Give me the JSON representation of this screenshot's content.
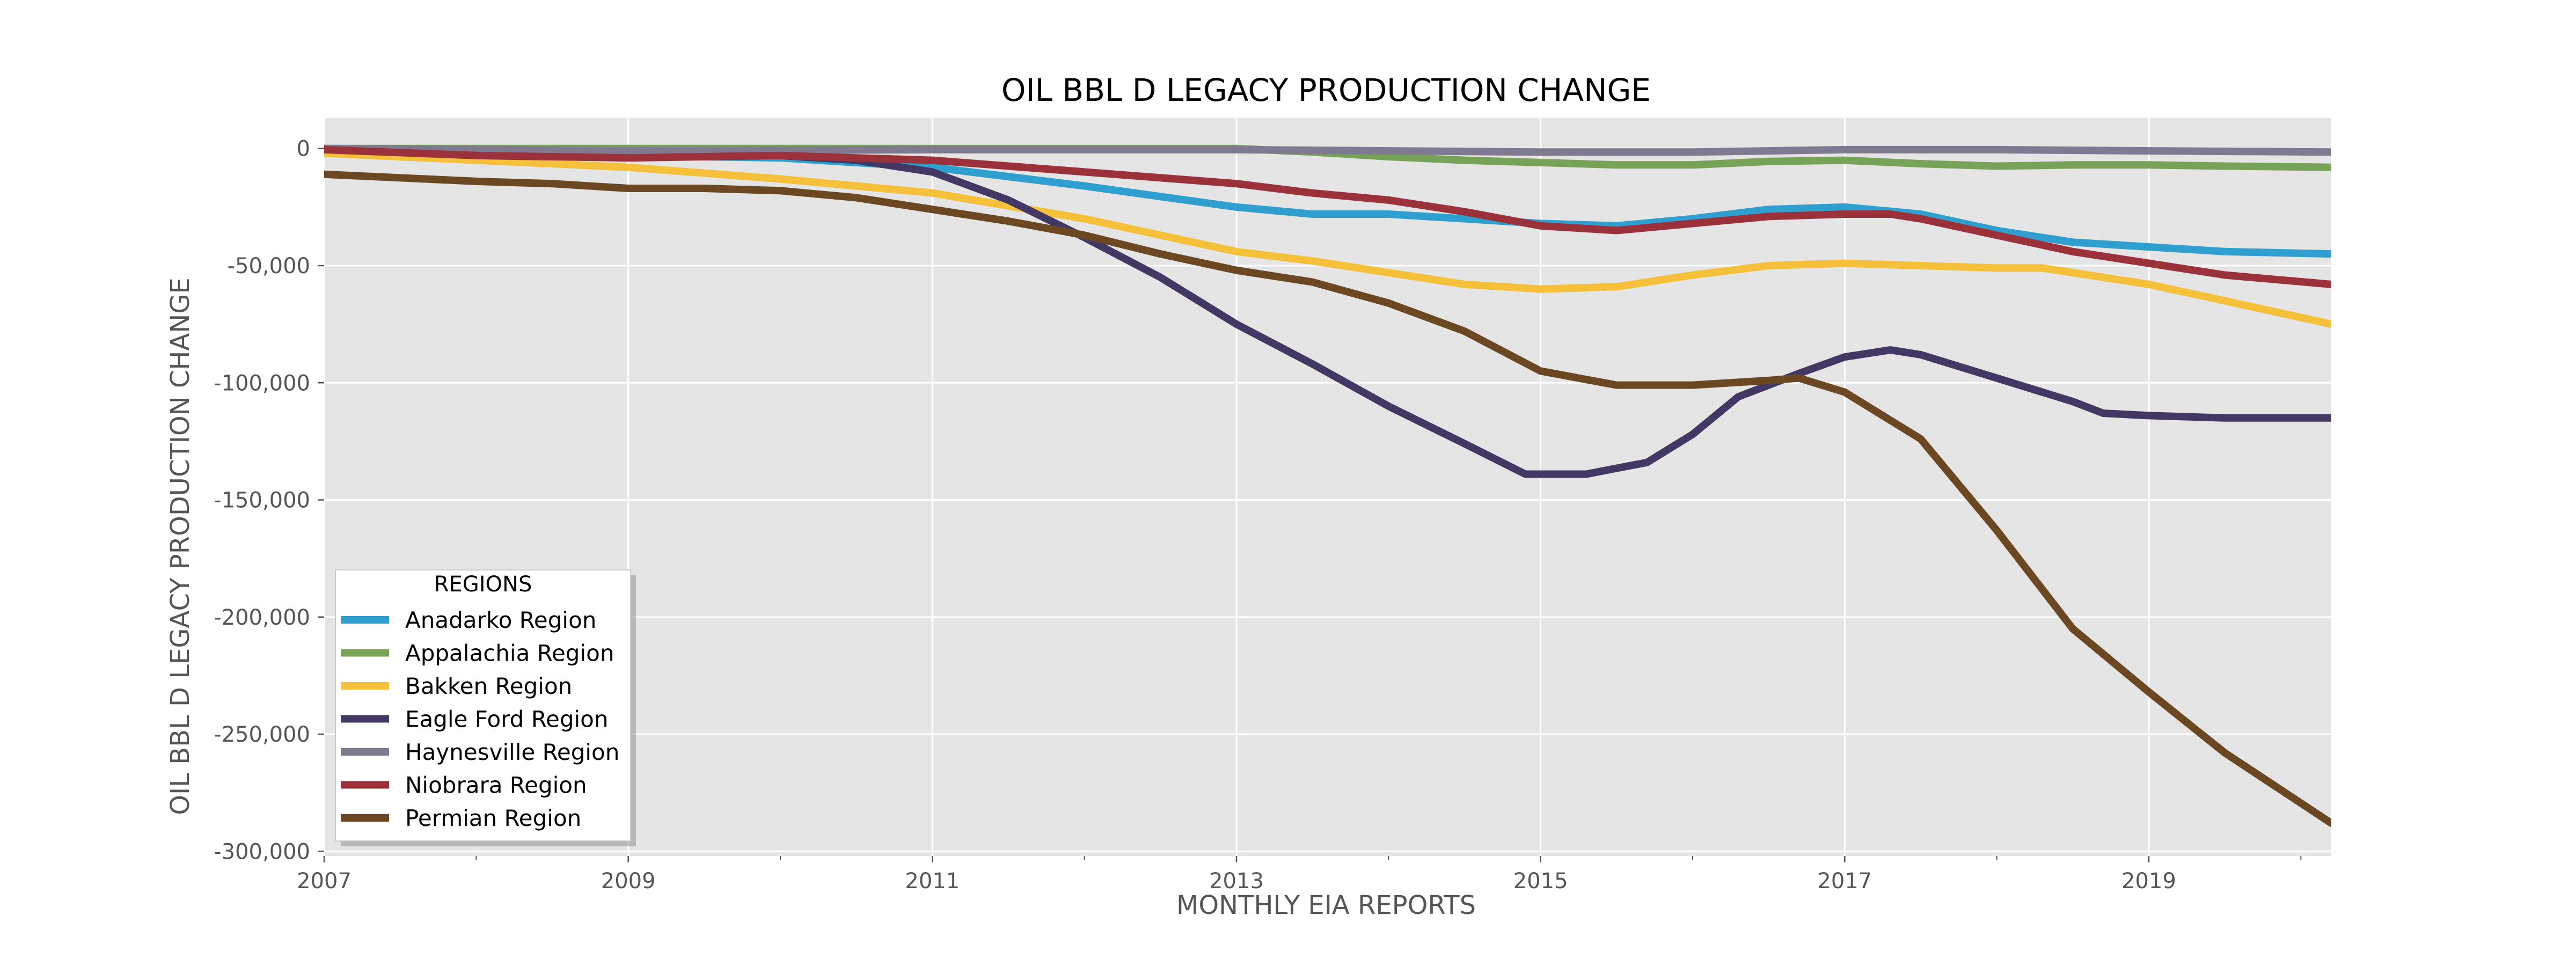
{
  "chart_data": {
    "type": "line",
    "title": "OIL BBL D LEGACY PRODUCTION CHANGE",
    "xlabel": "MONTHLY EIA REPORTS",
    "ylabel": "OIL BBL D LEGACY PRODUCTION CHANGE",
    "xlim": [
      2007,
      2020.2
    ],
    "ylim": [
      -302000,
      13000
    ],
    "x_major_ticks": [
      2007,
      2009,
      2011,
      2013,
      2015,
      2017,
      2019
    ],
    "x_major_tick_labels": [
      "2007",
      "2009",
      "2011",
      "2013",
      "2015",
      "2017",
      "2019"
    ],
    "x_minor_ticks": [
      2008,
      2010,
      2012,
      2014,
      2016,
      2018,
      2020
    ],
    "y_ticks": [
      0,
      -50000,
      -100000,
      -150000,
      -200000,
      -250000,
      -300000
    ],
    "y_tick_labels": [
      "0",
      "-50,000",
      "-100,000",
      "-150,000",
      "-200,000",
      "-250,000",
      "-300,000"
    ],
    "grid": true,
    "background": "#e5e5e5",
    "legend": {
      "title": "REGIONS",
      "placement": "lower-left"
    },
    "series": [
      {
        "name": "Anadarko Region",
        "color": "#2e9fce",
        "x": [
          2007,
          2008,
          2009,
          2010,
          2011,
          2012,
          2013,
          2013.5,
          2014,
          2014.5,
          2015,
          2015.5,
          2016,
          2016.5,
          2017,
          2017.5,
          2018,
          2018.5,
          2019,
          2019.5,
          2020.2
        ],
        "y": [
          -1000,
          -2000,
          -3000,
          -4000,
          -8000,
          -16000,
          -25000,
          -28000,
          -28000,
          -30000,
          -32000,
          -33000,
          -30000,
          -26000,
          -25000,
          -28000,
          -35000,
          -40000,
          -42000,
          -44000,
          -45000
        ]
      },
      {
        "name": "Appalachia Region",
        "color": "#78a258",
        "x": [
          2007,
          2008,
          2009,
          2010,
          2011,
          2012,
          2013,
          2013.5,
          2014,
          2014.5,
          2015,
          2015.5,
          2016,
          2016.5,
          2017,
          2017.5,
          2018,
          2018.5,
          2019,
          2019.5,
          2020.2
        ],
        "y": [
          0,
          0,
          0,
          0,
          0,
          0,
          0,
          -1500,
          -3500,
          -5000,
          -6000,
          -7000,
          -7000,
          -5500,
          -5000,
          -6500,
          -7500,
          -7000,
          -7000,
          -7500,
          -8000
        ]
      },
      {
        "name": "Bakken Region",
        "color": "#f5c13a",
        "x": [
          2007,
          2008,
          2009,
          2010,
          2011,
          2012,
          2013,
          2013.5,
          2014,
          2014.5,
          2015,
          2015.5,
          2016,
          2016.5,
          2017,
          2017.5,
          2018,
          2018.3,
          2018.5,
          2019,
          2019.5,
          2020.2
        ],
        "y": [
          -2000,
          -5000,
          -8000,
          -13000,
          -19000,
          -30000,
          -44000,
          -48000,
          -53000,
          -58000,
          -60000,
          -59000,
          -54000,
          -50000,
          -49000,
          -50000,
          -51000,
          -51000,
          -53000,
          -58000,
          -65000,
          -75000
        ]
      },
      {
        "name": "Eagle Ford Region",
        "color": "#433863",
        "x": [
          2007,
          2008,
          2009,
          2010,
          2010.5,
          2011,
          2011.5,
          2012,
          2012.5,
          2013,
          2013.5,
          2014,
          2014.5,
          2014.9,
          2015.3,
          2015.7,
          2016,
          2016.3,
          2016.7,
          2017,
          2017.3,
          2017.5,
          2018,
          2018.5,
          2018.7,
          2019,
          2019.5,
          2020.2
        ],
        "y": [
          0,
          -2000,
          -3000,
          -3000,
          -5000,
          -10000,
          -22000,
          -38000,
          -55000,
          -75000,
          -92000,
          -110000,
          -126000,
          -139000,
          -139000,
          -134000,
          -122000,
          -106000,
          -96000,
          -89000,
          -86000,
          -88000,
          -98000,
          -108000,
          -113000,
          -114000,
          -115000,
          -115000
        ]
      },
      {
        "name": "Haynesville Region",
        "color": "#7f7a8f",
        "x": [
          2007,
          2008,
          2009,
          2010,
          2011,
          2012,
          2013,
          2014,
          2015,
          2016,
          2017,
          2018,
          2019,
          2020.2
        ],
        "y": [
          0,
          -500,
          -1000,
          -800,
          -500,
          -500,
          -500,
          -1000,
          -1500,
          -1500,
          -500,
          -500,
          -1000,
          -1500
        ]
      },
      {
        "name": "Niobrara Region",
        "color": "#9b313b",
        "x": [
          2007,
          2008,
          2009,
          2010,
          2011,
          2012,
          2013,
          2013.5,
          2014,
          2014.5,
          2015,
          2015.5,
          2016,
          2016.5,
          2017,
          2017.3,
          2017.5,
          2018,
          2018.5,
          2019,
          2019.5,
          2020.2
        ],
        "y": [
          -500,
          -3000,
          -4000,
          -3000,
          -5000,
          -10000,
          -15000,
          -19000,
          -22000,
          -27000,
          -33000,
          -35000,
          -32000,
          -29000,
          -28000,
          -28000,
          -30000,
          -37000,
          -44000,
          -49000,
          -54000,
          -58000
        ]
      },
      {
        "name": "Permian Region",
        "color": "#6b4822",
        "x": [
          2007,
          2008,
          2008.5,
          2009,
          2009.5,
          2010,
          2010.5,
          2011,
          2011.5,
          2012,
          2012.5,
          2013,
          2013.5,
          2014,
          2014.5,
          2015,
          2015.5,
          2016,
          2016.5,
          2016.7,
          2017,
          2017.5,
          2018,
          2018.5,
          2019,
          2019.5,
          2020.2
        ],
        "y": [
          -11000,
          -14000,
          -15000,
          -17000,
          -17000,
          -18000,
          -21000,
          -26000,
          -31000,
          -37000,
          -45000,
          -52000,
          -57000,
          -66000,
          -78000,
          -95000,
          -101000,
          -101000,
          -99000,
          -98000,
          -104000,
          -124000,
          -163000,
          -205000,
          -232000,
          -258000,
          -288000
        ]
      }
    ]
  }
}
